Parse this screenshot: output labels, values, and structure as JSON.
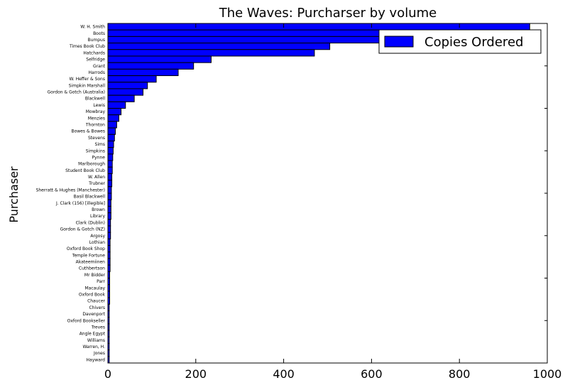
{
  "chart_data": {
    "type": "bar",
    "orientation": "horizontal",
    "title": "The Waves: Purcharser by volume",
    "xlabel": "",
    "ylabel": "Purchaser",
    "xlim": [
      0,
      1000
    ],
    "xticks": [
      0,
      200,
      400,
      600,
      800,
      1000
    ],
    "legend": {
      "position": "top-right",
      "entries": [
        "Copies Ordered"
      ]
    },
    "series_color": "#0000ff",
    "grid": false,
    "categories": [
      "W. H. Smith",
      "Boots",
      "Bumpus",
      "Times Book Club",
      "Hatchards",
      "Selfridge",
      "Grant",
      "Harrods",
      "W. Heffer & Sons",
      "Simpkin Marshall",
      "Gordon & Gotch (Australia)",
      "Blackwell",
      "Lewis",
      "Mowbray",
      "Menzies",
      "Thornton",
      "Bowes & Bowes",
      "Stevens",
      "Sims",
      "Simpkins",
      "Pynne",
      "Marlborough",
      "Student Book Club",
      "W. Allen",
      "Trubner",
      "Sherratt & Hughes (Manchester)",
      "Basil Blackwell",
      "J. Clark (156) [illegible]",
      "Brown",
      "Library",
      "Clark (Dublin)",
      "Gordon & Gotch (NZ)",
      "Argosy",
      "Lothian",
      "Oxford Book Shop",
      "Temple Fortune",
      "Akateemiinen",
      "Cuthbertson",
      "Mr Bidder",
      "Parr",
      "Macaulay",
      "Oxford Book",
      "Chaucer",
      "Chivers",
      "Davenport",
      "Oxford Bookseller",
      "Treves",
      "Angle Egypt",
      "Williams",
      "Warren, H.",
      "Jones",
      "Hayward"
    ],
    "values": [
      960,
      860,
      850,
      505,
      470,
      235,
      195,
      160,
      110,
      90,
      80,
      60,
      40,
      30,
      25,
      20,
      17,
      15,
      13,
      12,
      11,
      10,
      10,
      9,
      9,
      8,
      8,
      7,
      7,
      7,
      6,
      6,
      6,
      5,
      5,
      5,
      5,
      5,
      4,
      4,
      4,
      4,
      4,
      3,
      3,
      3,
      3,
      3,
      3,
      3,
      3,
      3
    ]
  }
}
